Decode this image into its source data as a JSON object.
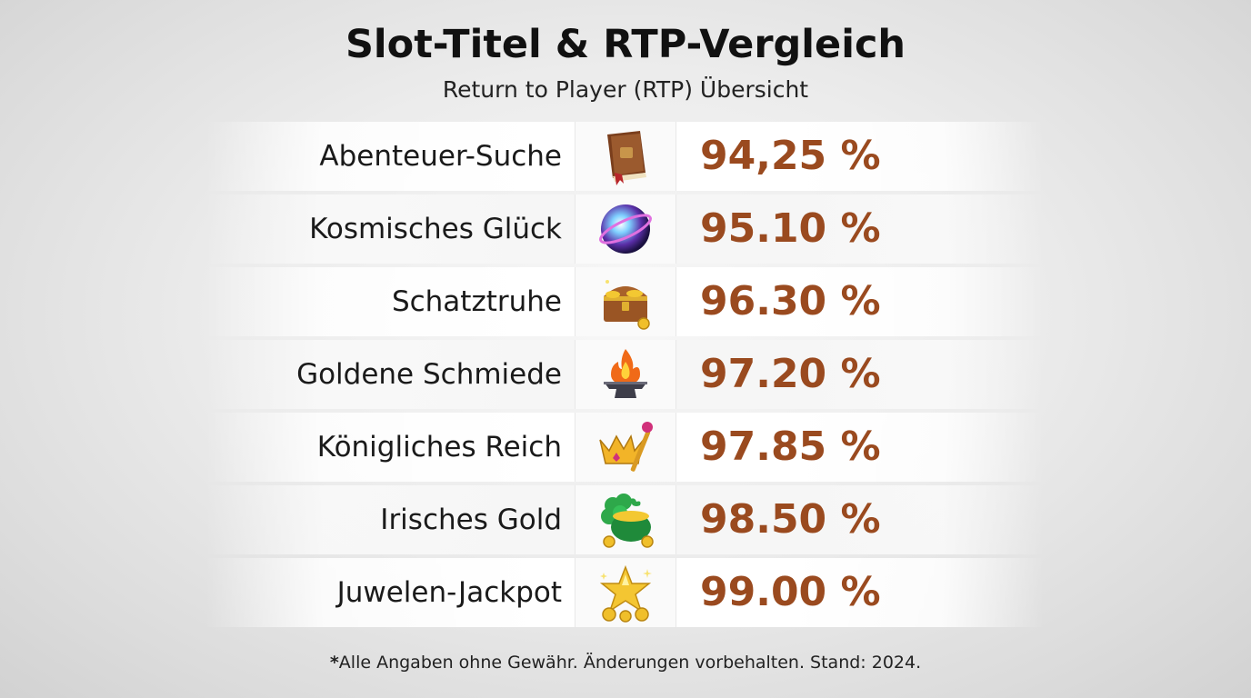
{
  "header": {
    "title": "Slot-Titel & RTP-Vergleich",
    "subtitle": "Return to Player (RTP) Übersicht"
  },
  "rows": [
    {
      "name": "Abenteuer-Suche",
      "rtp": "94,25 %",
      "icon": "book-icon"
    },
    {
      "name": "Kosmisches Glück",
      "rtp": "95.10 %",
      "icon": "cosmic-orb-icon"
    },
    {
      "name": "Schatztruhe",
      "rtp": "96.30 %",
      "icon": "treasure-chest-icon"
    },
    {
      "name": "Goldene Schmiede",
      "rtp": "97.20 %",
      "icon": "anvil-fire-icon"
    },
    {
      "name": "Königliches Reich",
      "rtp": "97.85 %",
      "icon": "crown-scepter-icon"
    },
    {
      "name": "Irisches Gold",
      "rtp": "98.50 %",
      "icon": "clover-pot-icon"
    },
    {
      "name": "Juwelen-Jackpot",
      "rtp": "99.00 %",
      "icon": "star-coins-icon"
    }
  ],
  "footnote": {
    "asterisk": "*",
    "text": "Alle Angaben ohne Gewähr. Änderungen vorbehalten. Stand: 2024."
  },
  "colors": {
    "rtp_text": "#9a4a1f",
    "title_text": "#111111"
  }
}
